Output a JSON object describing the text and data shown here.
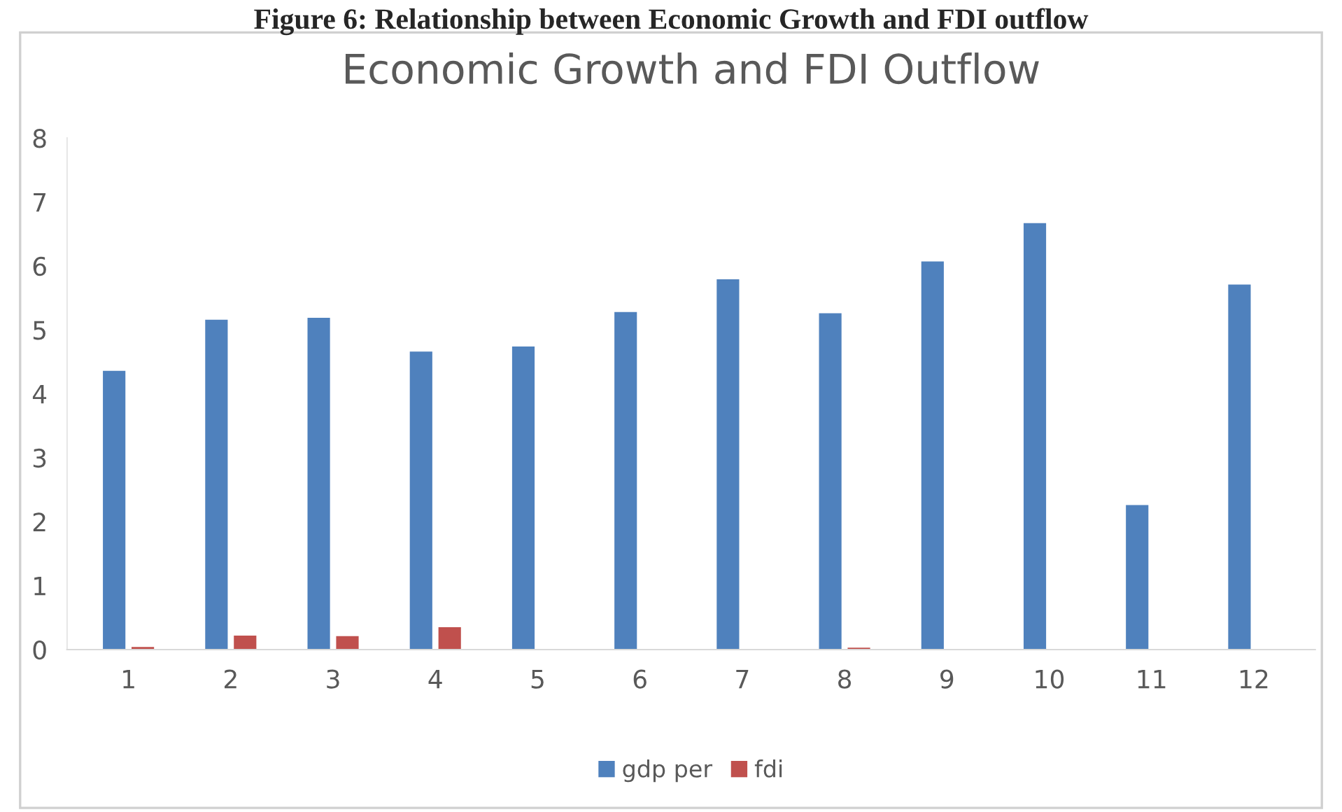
{
  "chart_data": {
    "type": "bar",
    "title": "Economic Growth and FDI Outflow",
    "annotations": [
      "Figure 6: Relationship between Economic Growth and FDI outflow"
    ],
    "categories": [
      "1",
      "2",
      "3",
      "4",
      "5",
      "6",
      "7",
      "8",
      "9",
      "10",
      "11",
      "12"
    ],
    "series": [
      {
        "name": "gdp per",
        "color": "#4f81bd",
        "values": [
          4.36,
          5.16,
          5.19,
          4.66,
          4.74,
          5.28,
          5.79,
          5.26,
          6.07,
          6.67,
          2.26,
          5.71
        ]
      },
      {
        "name": "fdi",
        "color": "#c0504d",
        "values": [
          0.04,
          0.22,
          0.21,
          0.35,
          0,
          0,
          0,
          0.03,
          0,
          0,
          0,
          0
        ]
      }
    ],
    "ylim": [
      0,
      8
    ],
    "yticks": [
      0,
      1,
      2,
      3,
      4,
      5,
      6,
      7,
      8
    ],
    "grid": false,
    "legend": "bottom"
  }
}
